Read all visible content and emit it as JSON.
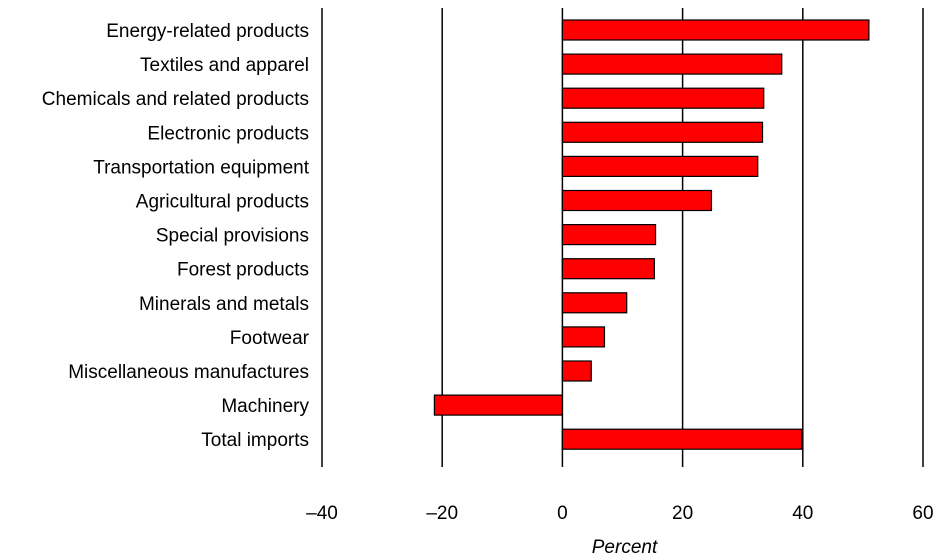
{
  "chart_data": {
    "type": "bar",
    "orientation": "horizontal",
    "title": "",
    "xlabel": "Percent",
    "ylabel": "",
    "xlim": [
      -40,
      60
    ],
    "xticks": [
      -40,
      -20,
      0,
      20,
      40,
      60
    ],
    "xtick_labels": [
      "–40",
      "–20",
      "0",
      "20",
      "40",
      "60"
    ],
    "grid": "vertical lines at ticks",
    "bar_color": "#ff0000",
    "categories": [
      "Energy-related products",
      "Textiles and apparel",
      "Chemicals and related products",
      "Electronic products",
      "Transportation equipment",
      "Agricultural products",
      "Special provisions",
      "Forest products",
      "Minerals and metals",
      "Footwear",
      "Miscellaneous manufactures",
      "Machinery",
      "Total imports"
    ],
    "values": [
      51,
      36.5,
      33.5,
      33.3,
      32.5,
      24.8,
      15.5,
      15.3,
      10.7,
      7,
      4.8,
      -21.3,
      39.8
    ]
  }
}
